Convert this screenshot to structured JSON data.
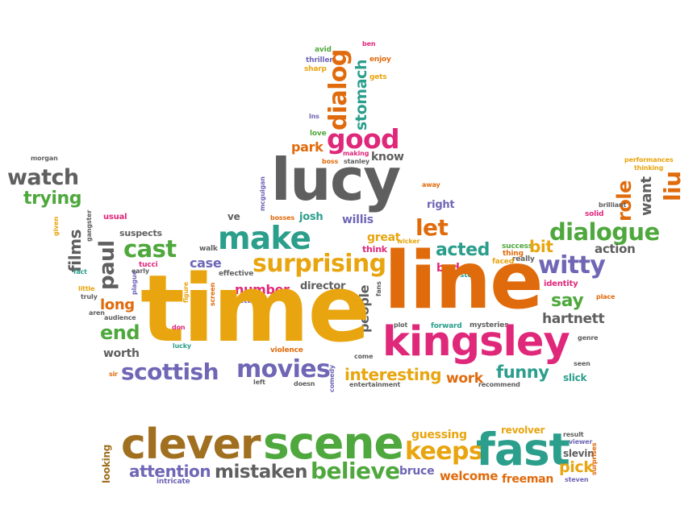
{
  "palette": {
    "orange": "#e06b0c",
    "yellow": "#e8a50f",
    "green": "#4fa83d",
    "teal": "#2b9e8c",
    "pink": "#e0287b",
    "purple": "#6f66b5",
    "gray": "#5f5f5f",
    "brown": "#a07020"
  },
  "words": [
    "ben",
    "avid",
    "enjoy",
    "thriller",
    "sharp",
    "dialog",
    "stomach",
    "gets",
    "lns",
    "love",
    "good",
    "making",
    "park",
    "know",
    "boss",
    "stanley",
    "morgan",
    "watch",
    "trying",
    "lucy",
    "performances",
    "thinking",
    "liu",
    "role",
    "want",
    "away",
    "right",
    "mcguigan",
    "usual",
    "gangster",
    "given",
    "films",
    "paul",
    "suspects",
    "ve",
    "bosses",
    "josh",
    "willis",
    "let",
    "dialogue",
    "cast",
    "make",
    "great",
    "wicker",
    "walk",
    "early",
    "tucci",
    "case",
    "surprising",
    "effective",
    "success",
    "thing",
    "really",
    "faced",
    "acted",
    "bad",
    "story",
    "brilliant",
    "solid",
    "bit",
    "action",
    "think",
    "fact",
    "plague",
    "figure",
    "little",
    "truly",
    "aren",
    "long",
    "number",
    "director",
    "screen",
    "better",
    "people",
    "line",
    "witty",
    "identity",
    "time",
    "say",
    "fans",
    "place",
    "end",
    "audience",
    "hartnett",
    "plot",
    "forward",
    "mysteries",
    "don",
    "genre",
    "kingsley",
    "worth",
    "lucky",
    "violence",
    "come",
    "seen",
    "scottish",
    "sir",
    "movies",
    "left",
    "doesn",
    "comedy",
    "interesting",
    "entertainment",
    "work",
    "recommend",
    "funny",
    "slick",
    "clever",
    "scene",
    "guessing",
    "revolver",
    "result",
    "viewer",
    "keeps",
    "fast",
    "looking",
    "attention",
    "intricate",
    "mistaken",
    "believe",
    "bruce",
    "welcome",
    "freeman",
    "pick",
    "slevin",
    "surprises",
    "steven"
  ]
}
